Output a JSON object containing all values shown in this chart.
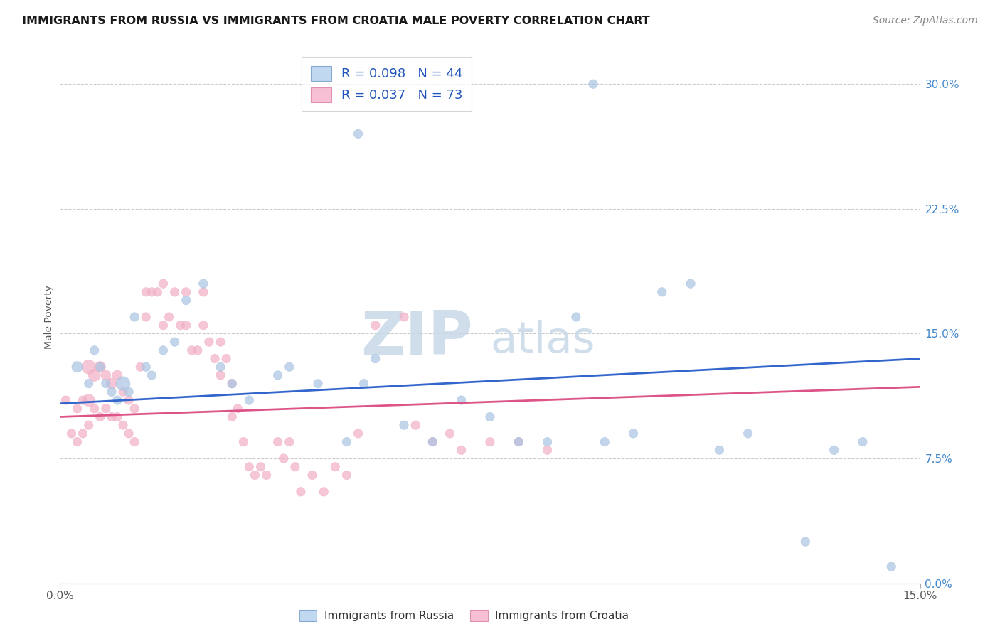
{
  "title": "IMMIGRANTS FROM RUSSIA VS IMMIGRANTS FROM CROATIA MALE POVERTY CORRELATION CHART",
  "source": "Source: ZipAtlas.com",
  "ylabel": "Male Poverty",
  "ytick_labels": [
    "0.0%",
    "7.5%",
    "15.0%",
    "22.5%",
    "30.0%"
  ],
  "ytick_values": [
    0.0,
    0.075,
    0.15,
    0.225,
    0.3
  ],
  "xlim": [
    0.0,
    0.15
  ],
  "ylim": [
    0.0,
    0.32
  ],
  "russia_R": 0.098,
  "russia_N": 44,
  "croatia_R": 0.037,
  "croatia_N": 73,
  "russia_color": "#aac4e2",
  "croatia_color": "#f2afc4",
  "russia_line_color": "#3366cc",
  "croatia_line_color": "#dd5588",
  "russia_line_y0": 0.108,
  "russia_line_y1": 0.135,
  "croatia_line_y0": 0.1,
  "croatia_line_y1": 0.118,
  "background_color": "#ffffff",
  "grid_color": "#cccccc",
  "watermark_zip": "ZIP",
  "watermark_atlas": "atlas",
  "russia_x": [
    0.003,
    0.005,
    0.006,
    0.007,
    0.008,
    0.009,
    0.01,
    0.011,
    0.012,
    0.013,
    0.015,
    0.016,
    0.018,
    0.02,
    0.022,
    0.025,
    0.028,
    0.03,
    0.033,
    0.038,
    0.04,
    0.045,
    0.05,
    0.053,
    0.055,
    0.06,
    0.065,
    0.07,
    0.075,
    0.08,
    0.085,
    0.09,
    0.095,
    0.1,
    0.105,
    0.11,
    0.115,
    0.12,
    0.13,
    0.135,
    0.14,
    0.145,
    0.052,
    0.093
  ],
  "russia_y": [
    0.13,
    0.12,
    0.14,
    0.13,
    0.12,
    0.115,
    0.11,
    0.12,
    0.115,
    0.16,
    0.13,
    0.125,
    0.14,
    0.145,
    0.17,
    0.18,
    0.13,
    0.12,
    0.11,
    0.125,
    0.13,
    0.12,
    0.085,
    0.12,
    0.135,
    0.095,
    0.085,
    0.11,
    0.1,
    0.085,
    0.085,
    0.16,
    0.085,
    0.09,
    0.175,
    0.18,
    0.08,
    0.09,
    0.025,
    0.08,
    0.085,
    0.01,
    0.27,
    0.3
  ],
  "russia_size": [
    120,
    80,
    80,
    80,
    80,
    80,
    80,
    200,
    80,
    80,
    80,
    80,
    80,
    80,
    80,
    80,
    80,
    80,
    80,
    80,
    80,
    80,
    80,
    80,
    80,
    80,
    80,
    80,
    80,
    80,
    80,
    80,
    80,
    80,
    80,
    80,
    80,
    80,
    80,
    80,
    80,
    80,
    80,
    80
  ],
  "croatia_x": [
    0.001,
    0.002,
    0.003,
    0.003,
    0.004,
    0.004,
    0.005,
    0.005,
    0.005,
    0.006,
    0.006,
    0.007,
    0.007,
    0.008,
    0.008,
    0.009,
    0.009,
    0.01,
    0.01,
    0.011,
    0.011,
    0.012,
    0.012,
    0.013,
    0.013,
    0.014,
    0.015,
    0.015,
    0.016,
    0.017,
    0.018,
    0.018,
    0.019,
    0.02,
    0.021,
    0.022,
    0.022,
    0.023,
    0.024,
    0.025,
    0.025,
    0.026,
    0.027,
    0.028,
    0.028,
    0.029,
    0.03,
    0.03,
    0.031,
    0.032,
    0.033,
    0.034,
    0.035,
    0.036,
    0.038,
    0.039,
    0.04,
    0.041,
    0.042,
    0.044,
    0.046,
    0.048,
    0.05,
    0.052,
    0.055,
    0.06,
    0.062,
    0.065,
    0.068,
    0.07,
    0.075,
    0.08,
    0.085
  ],
  "croatia_y": [
    0.11,
    0.09,
    0.105,
    0.085,
    0.11,
    0.09,
    0.13,
    0.11,
    0.095,
    0.125,
    0.105,
    0.13,
    0.1,
    0.125,
    0.105,
    0.12,
    0.1,
    0.125,
    0.1,
    0.115,
    0.095,
    0.11,
    0.09,
    0.105,
    0.085,
    0.13,
    0.175,
    0.16,
    0.175,
    0.175,
    0.18,
    0.155,
    0.16,
    0.175,
    0.155,
    0.175,
    0.155,
    0.14,
    0.14,
    0.175,
    0.155,
    0.145,
    0.135,
    0.145,
    0.125,
    0.135,
    0.12,
    0.1,
    0.105,
    0.085,
    0.07,
    0.065,
    0.07,
    0.065,
    0.085,
    0.075,
    0.085,
    0.07,
    0.055,
    0.065,
    0.055,
    0.07,
    0.065,
    0.09,
    0.155,
    0.16,
    0.095,
    0.085,
    0.09,
    0.08,
    0.085,
    0.085,
    0.08
  ],
  "croatia_size": [
    80,
    80,
    80,
    80,
    80,
    80,
    200,
    150,
    80,
    150,
    80,
    120,
    80,
    100,
    80,
    120,
    80,
    100,
    80,
    80,
    80,
    80,
    80,
    80,
    80,
    80,
    80,
    80,
    80,
    80,
    80,
    80,
    80,
    80,
    80,
    80,
    80,
    80,
    80,
    80,
    80,
    80,
    80,
    80,
    80,
    80,
    80,
    80,
    80,
    80,
    80,
    80,
    80,
    80,
    80,
    80,
    80,
    80,
    80,
    80,
    80,
    80,
    80,
    80,
    80,
    80,
    80,
    80,
    80,
    80,
    80,
    80,
    80
  ]
}
